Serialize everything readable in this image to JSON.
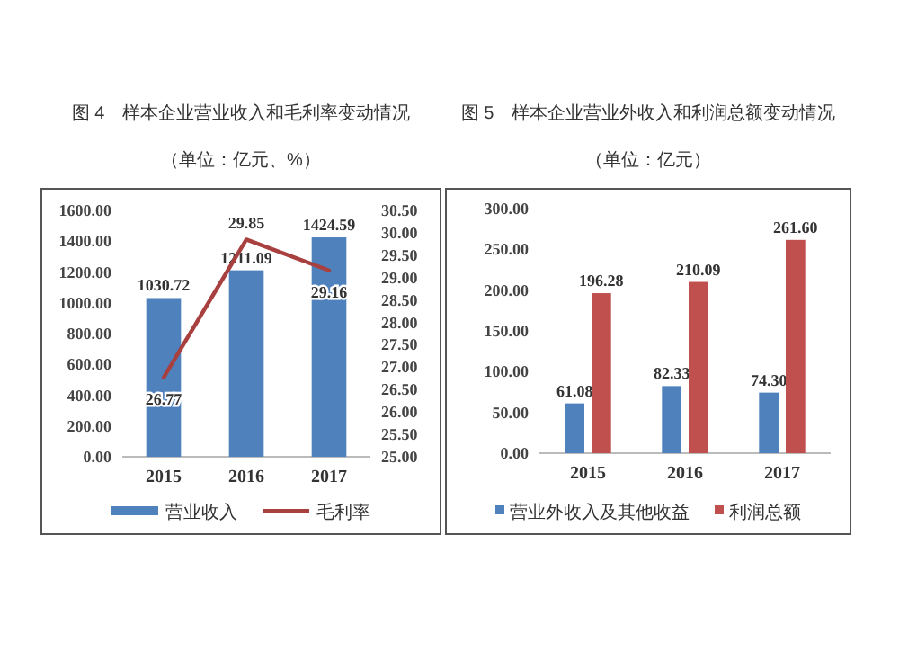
{
  "chart_data": [
    {
      "type": "bar",
      "title": "图 4　样本企业营业收入和毛利率变动情况",
      "subtitle": "（单位：亿元、%）",
      "categories": [
        "2015",
        "2016",
        "2017"
      ],
      "series": [
        {
          "name": "营业收入",
          "color": "#4f81bd",
          "values": [
            1030.72,
            1211.09,
            1424.59
          ],
          "value_labels": [
            "1030.72",
            "1211.09",
            "1424.59"
          ]
        },
        {
          "name": "毛利率",
          "type": "line",
          "axis": "y2",
          "color": "#a8403f",
          "values": [
            26.77,
            29.85,
            29.16
          ],
          "value_labels": [
            "26.77",
            "29.85",
            "29.16"
          ]
        }
      ],
      "ylim": [
        0,
        1600
      ],
      "yticks": [
        {
          "value": 0,
          "label": "0.00"
        },
        {
          "value": 200,
          "label": "200.00"
        },
        {
          "value": 400,
          "label": "400.00"
        },
        {
          "value": 600,
          "label": "600.00"
        },
        {
          "value": 800,
          "label": "800.00"
        },
        {
          "value": 1000,
          "label": "1000.00"
        },
        {
          "value": 1200,
          "label": "1200.00"
        },
        {
          "value": 1400,
          "label": "1400.00"
        },
        {
          "value": 1600,
          "label": "1600.00"
        }
      ],
      "y2lim": [
        25,
        30.5
      ],
      "y2ticks": [
        {
          "value": 25,
          "label": "25.00"
        },
        {
          "value": 25.5,
          "label": "25.50"
        },
        {
          "value": 26,
          "label": "26.00"
        },
        {
          "value": 26.5,
          "label": "26.50"
        },
        {
          "value": 27,
          "label": "27.00"
        },
        {
          "value": 27.5,
          "label": "27.50"
        },
        {
          "value": 28,
          "label": "28.00"
        },
        {
          "value": 28.5,
          "label": "28.50"
        },
        {
          "value": 29,
          "label": "29.00"
        },
        {
          "value": 29.5,
          "label": "29.50"
        },
        {
          "value": 30,
          "label": "30.00"
        },
        {
          "value": 30.5,
          "label": "30.50"
        }
      ],
      "legend": "bottom"
    },
    {
      "type": "bar",
      "title": "图 5　样本企业营业外收入和利润总额变动情况",
      "subtitle": "（单位：亿元）",
      "categories": [
        "2015",
        "2016",
        "2017"
      ],
      "series": [
        {
          "name": "营业外收入及其他收益",
          "color": "#4f81bd",
          "values": [
            61.08,
            82.33,
            74.3
          ],
          "value_labels": [
            "61.08",
            "82.33",
            "74.30"
          ]
        },
        {
          "name": "利润总额",
          "color": "#c0504d",
          "values": [
            196.28,
            210.09,
            261.6
          ],
          "value_labels": [
            "196.28",
            "210.09",
            "261.60"
          ]
        }
      ],
      "ylim": [
        0,
        300
      ],
      "yticks": [
        {
          "value": 0,
          "label": "0.00"
        },
        {
          "value": 50,
          "label": "50.00"
        },
        {
          "value": 100,
          "label": "100.00"
        },
        {
          "value": 150,
          "label": "150.00"
        },
        {
          "value": 200,
          "label": "200.00"
        },
        {
          "value": 250,
          "label": "250.00"
        },
        {
          "value": 300,
          "label": "300.00"
        }
      ],
      "legend": "bottom"
    }
  ]
}
